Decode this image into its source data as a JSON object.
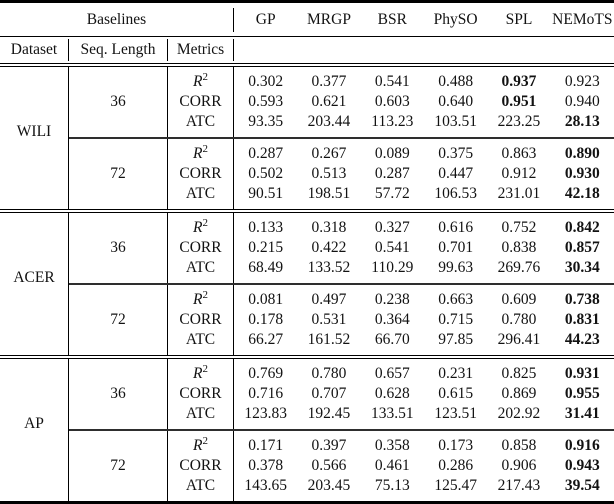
{
  "page": {
    "background": "#ffffff",
    "text_color": "#121212",
    "rule_color": "#000000"
  },
  "table": {
    "header": {
      "baselines_label": "Baselines",
      "dataset_label": "Dataset",
      "seq_length_label": "Seq. Length",
      "metrics_label": "Metrics",
      "methods": [
        "GP",
        "MRGP",
        "BSR",
        "PhySO",
        "SPL",
        "NEMoTS"
      ]
    },
    "sections": [
      {
        "dataset": "WILI",
        "blocks": [
          {
            "seq_length": "36",
            "rows": [
              {
                "metric": "R^2",
                "values": [
                  "0.302",
                  "0.377",
                  "0.541",
                  "0.488",
                  "0.937",
                  "0.923"
                ],
                "bold_indices": [
                  4
                ]
              },
              {
                "metric": "CORR",
                "values": [
                  "0.593",
                  "0.621",
                  "0.603",
                  "0.640",
                  "0.951",
                  "0.940"
                ],
                "bold_indices": [
                  4
                ]
              },
              {
                "metric": "ATC",
                "values": [
                  "93.35",
                  "203.44",
                  "113.23",
                  "103.51",
                  "223.25",
                  "28.13"
                ],
                "bold_indices": [
                  5
                ]
              }
            ]
          },
          {
            "seq_length": "72",
            "rows": [
              {
                "metric": "R^2",
                "values": [
                  "0.287",
                  "0.267",
                  "0.089",
                  "0.375",
                  "0.863",
                  "0.890"
                ],
                "bold_indices": [
                  5
                ]
              },
              {
                "metric": "CORR",
                "values": [
                  "0.502",
                  "0.513",
                  "0.287",
                  "0.447",
                  "0.912",
                  "0.930"
                ],
                "bold_indices": [
                  5
                ]
              },
              {
                "metric": "ATC",
                "values": [
                  "90.51",
                  "198.51",
                  "57.72",
                  "106.53",
                  "231.01",
                  "42.18"
                ],
                "bold_indices": [
                  5
                ]
              }
            ]
          }
        ]
      },
      {
        "dataset": "ACER",
        "blocks": [
          {
            "seq_length": "36",
            "rows": [
              {
                "metric": "R^2",
                "values": [
                  "0.133",
                  "0.318",
                  "0.327",
                  "0.616",
                  "0.752",
                  "0.842"
                ],
                "bold_indices": [
                  5
                ]
              },
              {
                "metric": "CORR",
                "values": [
                  "0.215",
                  "0.422",
                  "0.541",
                  "0.701",
                  "0.838",
                  "0.857"
                ],
                "bold_indices": [
                  5
                ]
              },
              {
                "metric": "ATC",
                "values": [
                  "68.49",
                  "133.52",
                  "110.29",
                  "99.63",
                  "269.76",
                  "30.34"
                ],
                "bold_indices": [
                  5
                ]
              }
            ]
          },
          {
            "seq_length": "72",
            "rows": [
              {
                "metric": "R^2",
                "values": [
                  "0.081",
                  "0.497",
                  "0.238",
                  "0.663",
                  "0.609",
                  "0.738"
                ],
                "bold_indices": [
                  5
                ]
              },
              {
                "metric": "CORR",
                "values": [
                  "0.178",
                  "0.531",
                  "0.364",
                  "0.715",
                  "0.780",
                  "0.831"
                ],
                "bold_indices": [
                  5
                ]
              },
              {
                "metric": "ATC",
                "values": [
                  "66.27",
                  "161.52",
                  "66.70",
                  "97.85",
                  "296.41",
                  "44.23"
                ],
                "bold_indices": [
                  5
                ]
              }
            ]
          }
        ]
      },
      {
        "dataset": "AP",
        "blocks": [
          {
            "seq_length": "36",
            "rows": [
              {
                "metric": "R^2",
                "values": [
                  "0.769",
                  "0.780",
                  "0.657",
                  "0.231",
                  "0.825",
                  "0.931"
                ],
                "bold_indices": [
                  5
                ]
              },
              {
                "metric": "CORR",
                "values": [
                  "0.716",
                  "0.707",
                  "0.628",
                  "0.615",
                  "0.869",
                  "0.955"
                ],
                "bold_indices": [
                  5
                ]
              },
              {
                "metric": "ATC",
                "values": [
                  "123.83",
                  "192.45",
                  "133.51",
                  "123.51",
                  "202.92",
                  "31.41"
                ],
                "bold_indices": [
                  5
                ]
              }
            ]
          },
          {
            "seq_length": "72",
            "rows": [
              {
                "metric": "R^2",
                "values": [
                  "0.171",
                  "0.397",
                  "0.358",
                  "0.173",
                  "0.858",
                  "0.916"
                ],
                "bold_indices": [
                  5
                ]
              },
              {
                "metric": "CORR",
                "values": [
                  "0.378",
                  "0.566",
                  "0.461",
                  "0.286",
                  "0.906",
                  "0.943"
                ],
                "bold_indices": [
                  5
                ]
              },
              {
                "metric": "ATC",
                "values": [
                  "143.65",
                  "203.45",
                  "75.13",
                  "125.47",
                  "217.43",
                  "39.54"
                ],
                "bold_indices": [
                  5
                ]
              }
            ]
          }
        ]
      }
    ]
  }
}
